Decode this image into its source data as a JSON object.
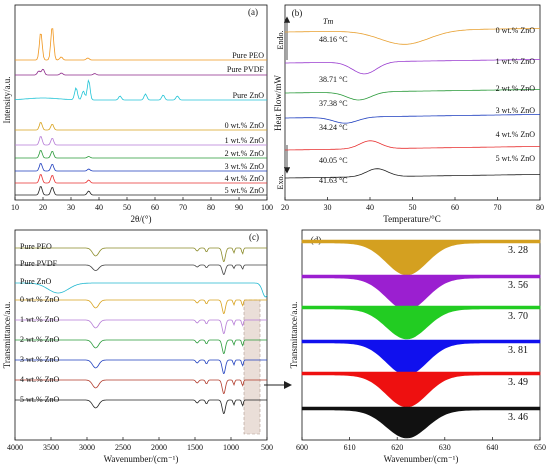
{
  "chart_data": [
    {
      "id": "a",
      "type": "line",
      "panel_label": "(a)",
      "xlabel": "2θ/(°)",
      "ylabel": "Intensity/a.u.",
      "xlim": [
        10,
        100
      ],
      "xticks": [
        "10",
        "20",
        "30",
        "40",
        "50",
        "60",
        "70",
        "80",
        "90",
        "100"
      ],
      "series": [
        {
          "name": "Pure PEO",
          "color": "#f0961e",
          "peaks": [
            [
              19.2,
              28
            ],
            [
              23.3,
              34
            ],
            [
              26.5,
              3
            ],
            [
              36,
              2
            ]
          ]
        },
        {
          "name": "Pure PVDF",
          "color": "#8e2a8a",
          "peaks": [
            [
              18.5,
              4
            ],
            [
              20,
              6
            ],
            [
              26.6,
              2
            ],
            [
              38.5,
              1.5
            ]
          ]
        },
        {
          "name": "Pure ZnO",
          "color": "#22c4d6",
          "peaks": [
            [
              31.8,
              12
            ],
            [
              34.4,
              9
            ],
            [
              36.3,
              20
            ],
            [
              47.5,
              4
            ],
            [
              56.6,
              6
            ],
            [
              62.9,
              5
            ],
            [
              68,
              4
            ]
          ]
        },
        {
          "name": "0 wt.% ZnO",
          "color": "#d8a21c",
          "peaks": [
            [
              19.2,
              8
            ],
            [
              23.3,
              6
            ]
          ]
        },
        {
          "name": "1 wt.% ZnO",
          "color": "#b57bd6",
          "peaks": [
            [
              19.2,
              9
            ],
            [
              23.3,
              7
            ]
          ]
        },
        {
          "name": "2 wt.% ZnO",
          "color": "#2a9a3a",
          "peaks": [
            [
              19.2,
              8
            ],
            [
              23.3,
              7
            ],
            [
              36.3,
              1.5
            ]
          ]
        },
        {
          "name": "3 wt.% ZnO",
          "color": "#1f3fbf",
          "peaks": [
            [
              19.2,
              8
            ],
            [
              23.3,
              7
            ],
            [
              36.3,
              2
            ]
          ]
        },
        {
          "name": "4 wt.% ZnO",
          "color": "#e83030",
          "peaks": [
            [
              19.2,
              9
            ],
            [
              23.3,
              8
            ],
            [
              36.3,
              3
            ]
          ]
        },
        {
          "name": "5 wt.% ZnO",
          "color": "#222222",
          "peaks": [
            [
              19.2,
              9
            ],
            [
              23.3,
              8
            ],
            [
              36.3,
              4
            ]
          ]
        }
      ]
    },
    {
      "id": "b",
      "type": "line",
      "panel_label": "(b)",
      "xlabel": "Temperature/°C",
      "ylabel": "Heat Flow/mW",
      "endo_label": "Endo.",
      "exo_label": "Exo.",
      "tm_label": "Tm",
      "xlim": [
        20,
        80
      ],
      "xticks": [
        "20",
        "30",
        "40",
        "50",
        "60",
        "70",
        "80"
      ],
      "series": [
        {
          "name": "0 wt.% ZnO",
          "color": "#e8a030",
          "tm": 48.16,
          "tm_label": "48.16 °C"
        },
        {
          "name": "1 wt.% ZnO",
          "color": "#9b3fd0",
          "tm": 38.71,
          "tm_label": "38.71 °C"
        },
        {
          "name": "2 wt.% ZnO",
          "color": "#2a9a3a",
          "tm": 37.38,
          "tm_label": "37.38 °C"
        },
        {
          "name": "3 wt.% ZnO",
          "color": "#1f3fbf",
          "tm": 34.24,
          "tm_label": "34.24 °C"
        },
        {
          "name": "4 wt.% ZnO",
          "color": "#e83030",
          "tm": 40.05,
          "tm_label": "40.05 °C"
        },
        {
          "name": "5 wt.% ZnO",
          "color": "#222222",
          "tm": 41.63,
          "tm_label": "41.63 °C"
        }
      ]
    },
    {
      "id": "c",
      "type": "line",
      "panel_label": "(c)",
      "xlabel": "Wavenumber/(cm⁻¹)",
      "ylabel": "Transmittance/a.u.",
      "xlim": [
        4000,
        500
      ],
      "xticks": [
        "4000",
        "3500",
        "3000",
        "2500",
        "2000",
        "1500",
        "1000",
        "500"
      ],
      "series": [
        {
          "name": "Pure PEO",
          "color": "#8b8b2a"
        },
        {
          "name": "Pure PVDF",
          "color": "#444444"
        },
        {
          "name": "Pure ZnO",
          "color": "#22b8d0"
        },
        {
          "name": "0 wt.% ZnO",
          "color": "#d8a21c"
        },
        {
          "name": "1 wt.% ZnO",
          "color": "#b57bd6"
        },
        {
          "name": "2 wt.% ZnO",
          "color": "#2a9a3a"
        },
        {
          "name": "3 wt.% ZnO",
          "color": "#1f3fbf"
        },
        {
          "name": "4 wt.% ZnO",
          "color": "#b03a2a"
        },
        {
          "name": "5 wt.% ZnO",
          "color": "#222222"
        }
      ]
    },
    {
      "id": "d",
      "type": "area",
      "panel_label": "(d)",
      "xlabel": "Wavenumber/(cm⁻¹)",
      "ylabel": "Transmittance/a.u.",
      "xlim": [
        600,
        650
      ],
      "xticks": [
        "600",
        "610",
        "620",
        "630",
        "640",
        "650"
      ],
      "series": [
        {
          "value_label": "3. 28",
          "value": 3.28,
          "color": "#d4a020"
        },
        {
          "value_label": "3. 56",
          "value": 3.56,
          "color": "#9b1fd0"
        },
        {
          "value_label": "3. 70",
          "value": 3.7,
          "color": "#22cc22"
        },
        {
          "value_label": "3. 81",
          "value": 3.81,
          "color": "#1010ee"
        },
        {
          "value_label": "3. 49",
          "value": 3.49,
          "color": "#ee1010"
        },
        {
          "value_label": "3. 46",
          "value": 3.46,
          "color": "#111111"
        }
      ]
    }
  ]
}
